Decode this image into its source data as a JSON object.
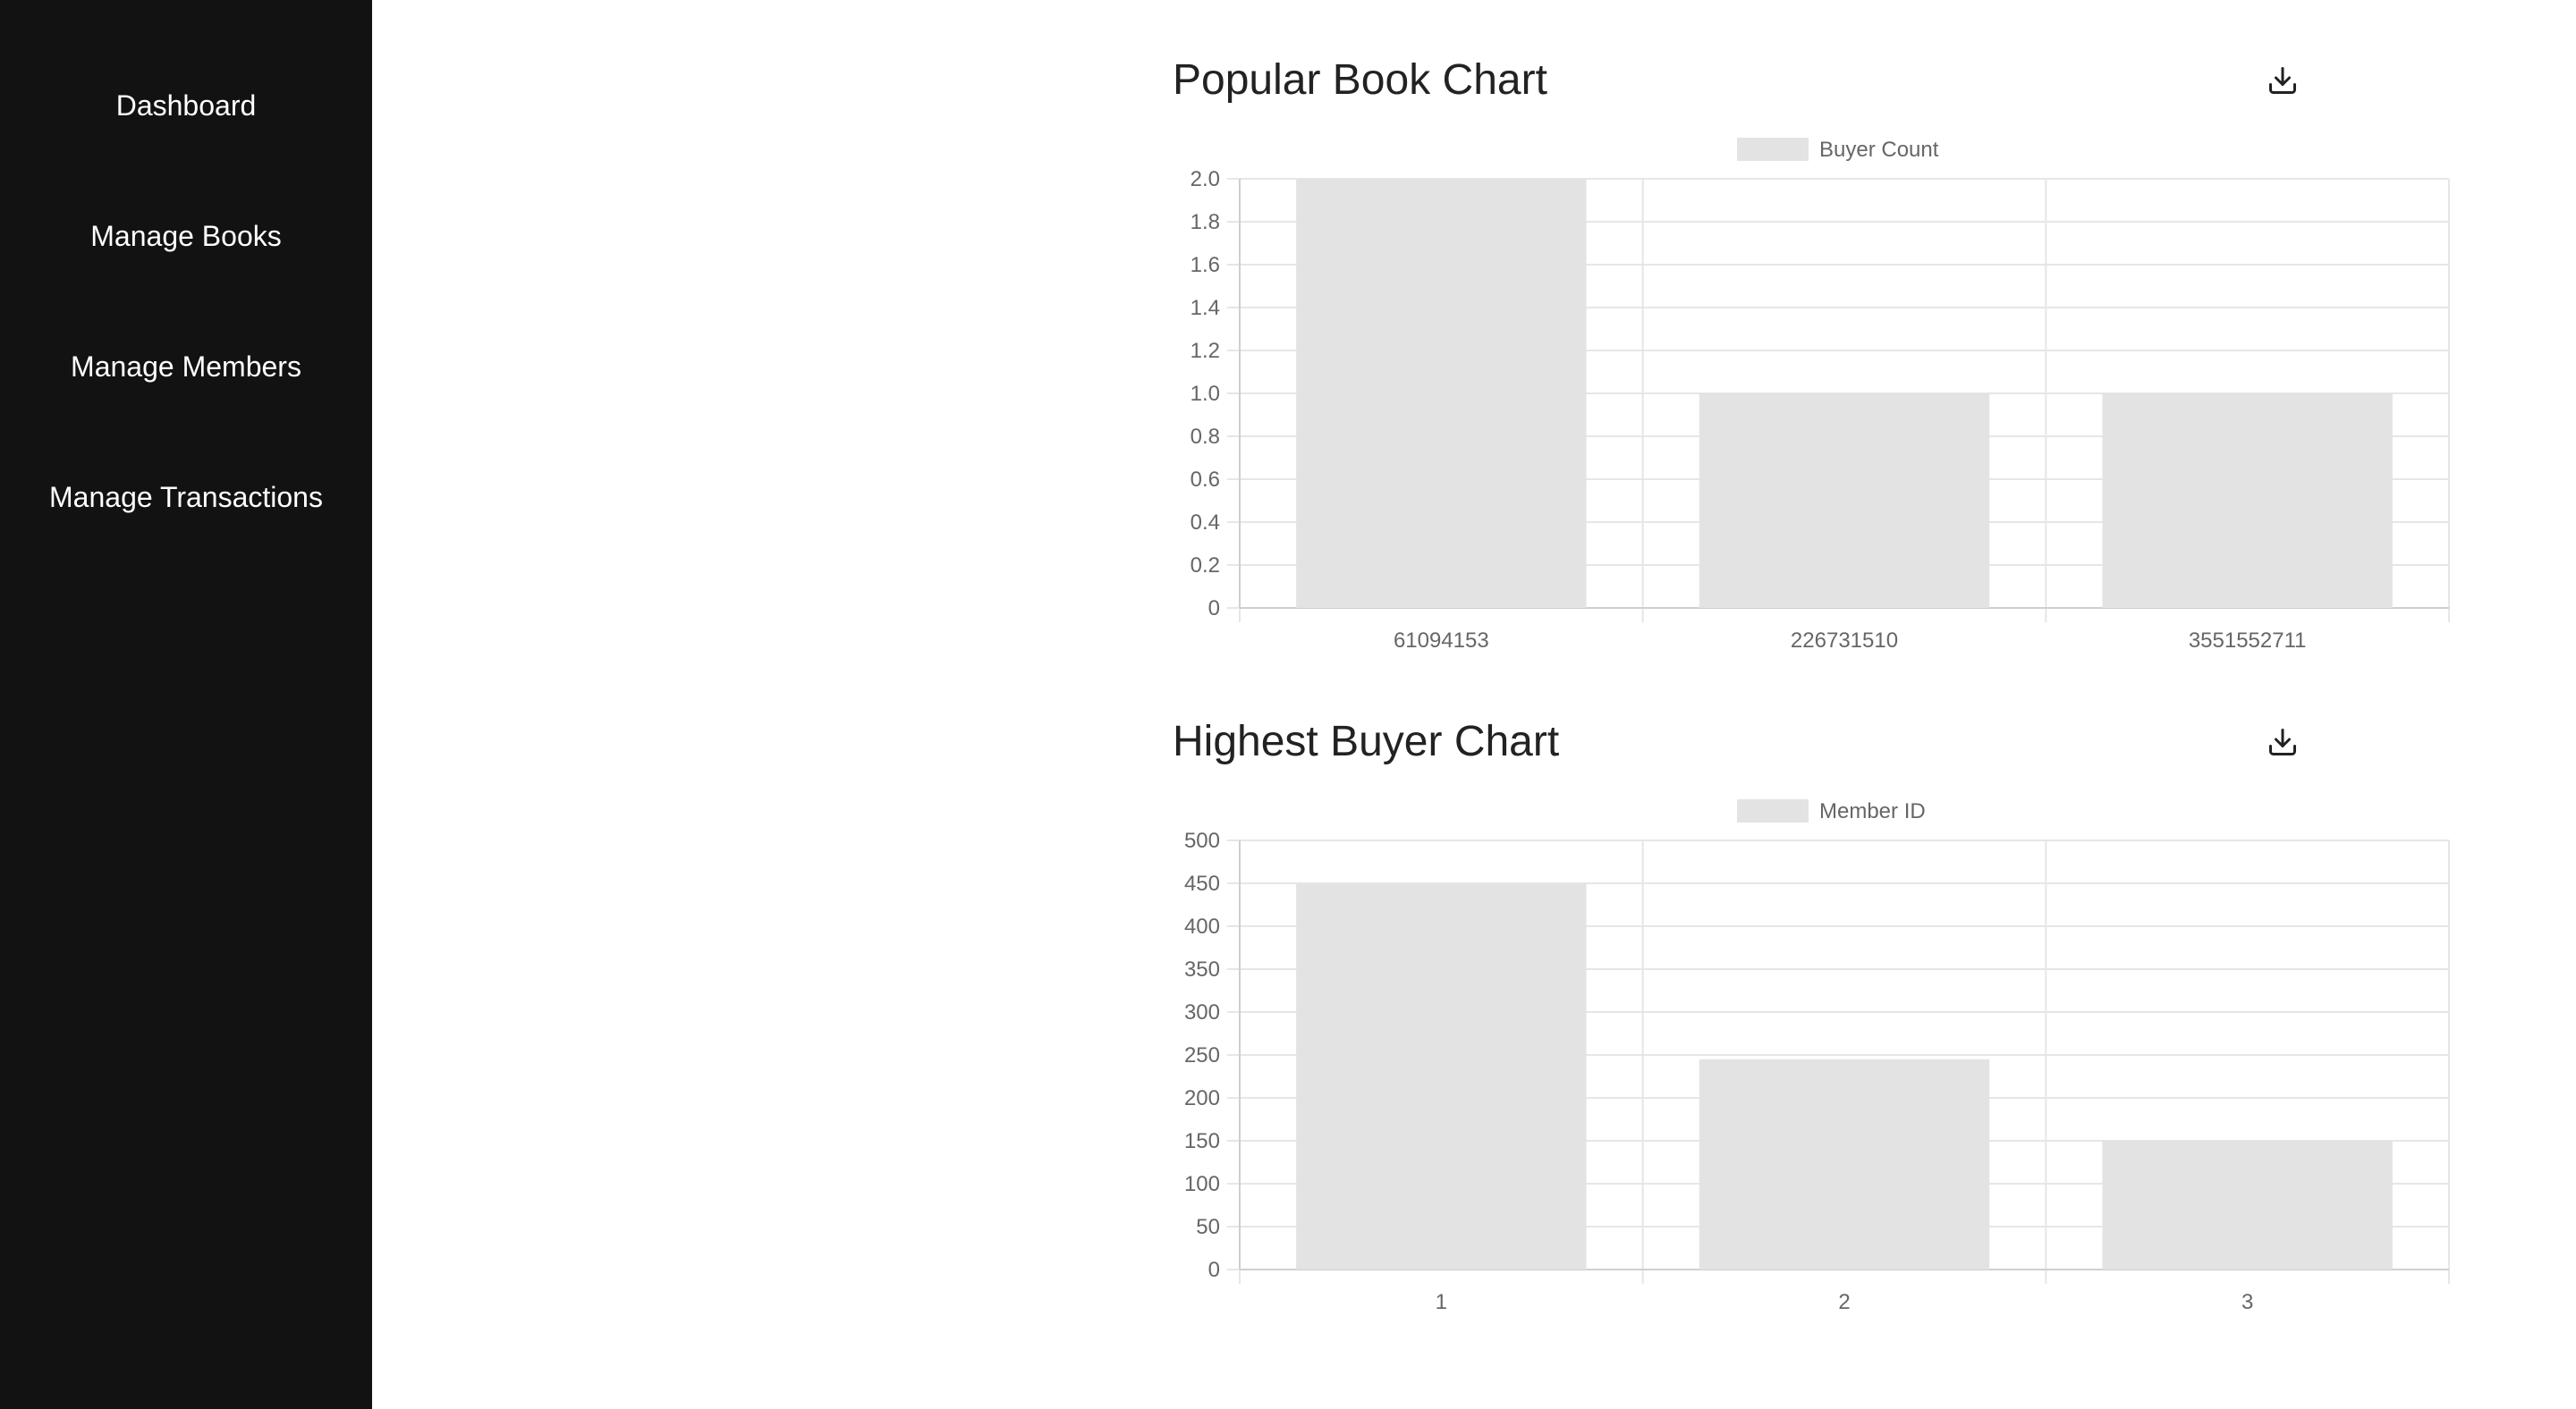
{
  "sidebar": {
    "items": [
      {
        "label": "Dashboard"
      },
      {
        "label": "Manage Books"
      },
      {
        "label": "Manage Members"
      },
      {
        "label": "Manage Transactions"
      }
    ]
  },
  "colors": {
    "sidebar_bg": "#121212",
    "bar_fill": "#e3e3e3",
    "grid": "#e6e6e6",
    "text": "#666666"
  },
  "icons": {
    "download": "download-icon"
  },
  "chart_data": [
    {
      "type": "bar",
      "title": "Popular Book Chart",
      "legend": "top",
      "grid": true,
      "categories": [
        "61094153",
        "226731510",
        "3551552711"
      ],
      "series": [
        {
          "name": "Buyer Count",
          "values": [
            2,
            1,
            1
          ]
        }
      ],
      "ylim": [
        0,
        2
      ],
      "yticks": [
        "0",
        "0.2",
        "0.4",
        "0.6",
        "0.8",
        "1.0",
        "1.2",
        "1.4",
        "1.6",
        "1.8",
        "2.0"
      ]
    },
    {
      "type": "bar",
      "title": "Highest Buyer Chart",
      "legend": "top",
      "grid": true,
      "categories": [
        "1",
        "2",
        "3"
      ],
      "series": [
        {
          "name": "Member ID",
          "values": [
            450,
            245,
            150
          ]
        }
      ],
      "ylim": [
        0,
        500
      ],
      "yticks": [
        "0",
        "50",
        "100",
        "150",
        "200",
        "250",
        "300",
        "350",
        "400",
        "450",
        "500"
      ]
    }
  ]
}
